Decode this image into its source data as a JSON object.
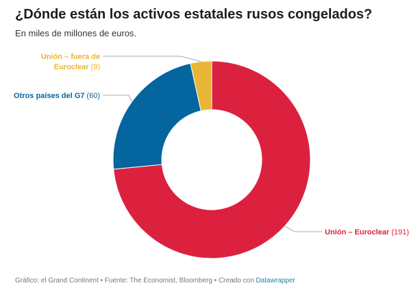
{
  "title": "¿Dónde están los activos estatales rusos congelados?",
  "subtitle": "En miles de millones de euros.",
  "footer": {
    "prefix": "Gráfico: el Grand Continent • Fuente: The Economist, Bloomberg • Creado con ",
    "link": "Datawrapper"
  },
  "chart_data": {
    "type": "pie",
    "donut": true,
    "title": "¿Dónde están los activos estatales rusos congelados?",
    "subtitle": "En miles de millones de euros.",
    "slices": [
      {
        "label": "Unión – Euroclear",
        "value": 191,
        "value_text": "(191)",
        "color": "#dc213f"
      },
      {
        "label": "Otros países del G7",
        "value": 60,
        "value_text": "(60)",
        "color": "#05659f"
      },
      {
        "label_lines": [
          "Unión – fuera de",
          "Euroclear"
        ],
        "label": "Unión – fuera de Euroclear",
        "value": 9,
        "value_text": "(9)",
        "color": "#e8b535"
      }
    ]
  }
}
